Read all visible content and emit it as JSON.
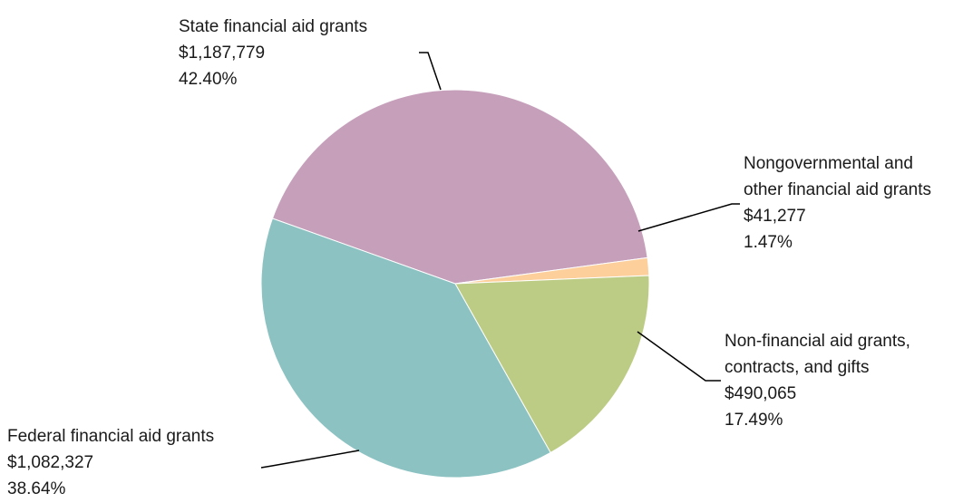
{
  "chart_data": {
    "type": "pie",
    "slices": [
      {
        "name": "State financial aid grants",
        "value": 1187779,
        "value_label": "$1,187,779",
        "percent": 42.4,
        "percent_label": "42.40%",
        "color": "#c6a0bb"
      },
      {
        "name": "Nongovernmental and other financial aid grants",
        "name_lines": [
          "Nongovernmental and",
          "other financial aid grants"
        ],
        "value": 41277,
        "value_label": "$41,277",
        "percent": 1.47,
        "percent_label": "1.47%",
        "color": "#fccf9b"
      },
      {
        "name": "Non-financial aid grants, contracts, and gifts",
        "name_lines": [
          "Non-financial aid grants,",
          "contracts, and gifts"
        ],
        "value": 490065,
        "value_label": "$490,065",
        "percent": 17.49,
        "percent_label": "17.49%",
        "color": "#bccc84"
      },
      {
        "name": "Federal financial aid grants",
        "value": 1082327,
        "value_label": "$1,082,327",
        "percent": 38.64,
        "percent_label": "38.64%",
        "color": "#8cc2c2"
      }
    ]
  }
}
